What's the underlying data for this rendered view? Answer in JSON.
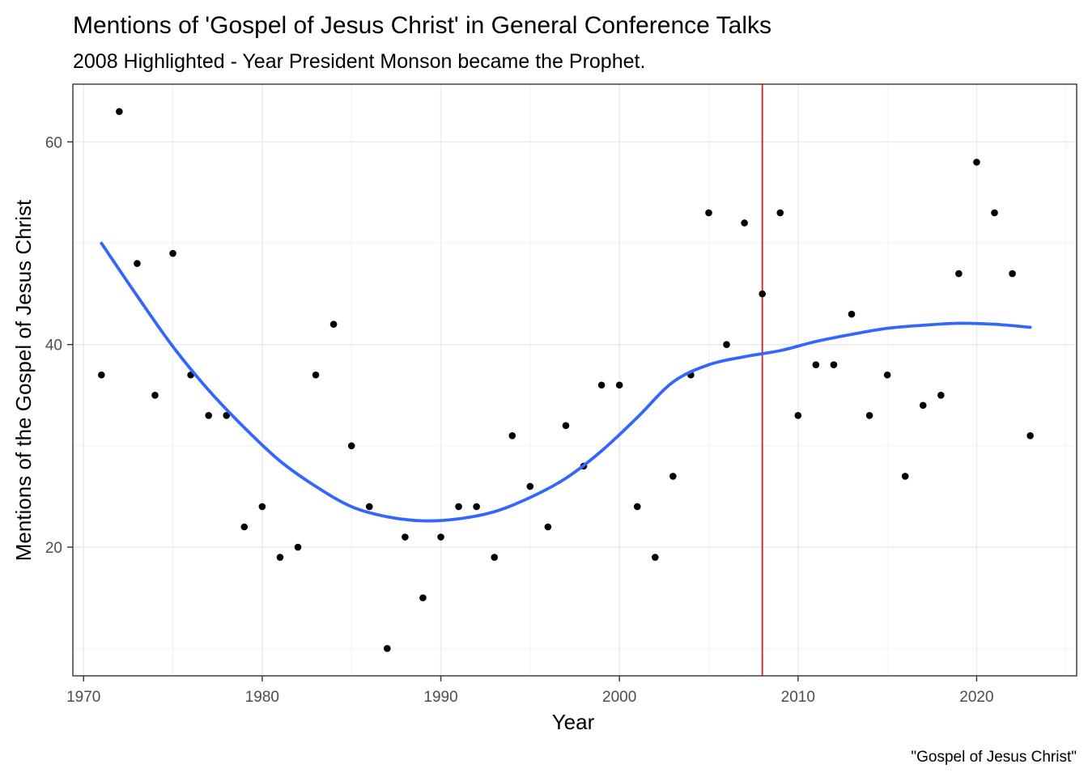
{
  "chart_data": {
    "type": "scatter",
    "title": "Mentions of 'Gospel of Jesus Christ' in General Conference Talks",
    "subtitle": "2008 Highlighted - Year President Monson became the Prophet.",
    "xlabel": "Year",
    "ylabel": "Mentions of the Gospel of Jesus Christ",
    "caption": "\"Gospel of Jesus Christ\"",
    "xlim": [
      1969.4,
      2025.6
    ],
    "ylim": [
      7.3,
      65.7
    ],
    "x_ticks": [
      1970,
      1980,
      1990,
      2000,
      2010,
      2020
    ],
    "y_ticks": [
      20,
      40,
      60
    ],
    "grid": true,
    "points": [
      {
        "x": 1971,
        "y": 37
      },
      {
        "x": 1972,
        "y": 63
      },
      {
        "x": 1973,
        "y": 48
      },
      {
        "x": 1974,
        "y": 35
      },
      {
        "x": 1975,
        "y": 49
      },
      {
        "x": 1976,
        "y": 37
      },
      {
        "x": 1977,
        "y": 33
      },
      {
        "x": 1978,
        "y": 33
      },
      {
        "x": 1979,
        "y": 22
      },
      {
        "x": 1980,
        "y": 24
      },
      {
        "x": 1981,
        "y": 19
      },
      {
        "x": 1982,
        "y": 20
      },
      {
        "x": 1983,
        "y": 37
      },
      {
        "x": 1984,
        "y": 42
      },
      {
        "x": 1985,
        "y": 30
      },
      {
        "x": 1986,
        "y": 24
      },
      {
        "x": 1987,
        "y": 10
      },
      {
        "x": 1988,
        "y": 21
      },
      {
        "x": 1989,
        "y": 15
      },
      {
        "x": 1990,
        "y": 21
      },
      {
        "x": 1991,
        "y": 24
      },
      {
        "x": 1992,
        "y": 24
      },
      {
        "x": 1993,
        "y": 19
      },
      {
        "x": 1994,
        "y": 31
      },
      {
        "x": 1995,
        "y": 26
      },
      {
        "x": 1996,
        "y": 22
      },
      {
        "x": 1997,
        "y": 32
      },
      {
        "x": 1998,
        "y": 28
      },
      {
        "x": 1999,
        "y": 36
      },
      {
        "x": 2000,
        "y": 36
      },
      {
        "x": 2001,
        "y": 24
      },
      {
        "x": 2002,
        "y": 19
      },
      {
        "x": 2003,
        "y": 27
      },
      {
        "x": 2004,
        "y": 37
      },
      {
        "x": 2005,
        "y": 53
      },
      {
        "x": 2006,
        "y": 40
      },
      {
        "x": 2007,
        "y": 52
      },
      {
        "x": 2008,
        "y": 45
      },
      {
        "x": 2009,
        "y": 53
      },
      {
        "x": 2010,
        "y": 33
      },
      {
        "x": 2011,
        "y": 38
      },
      {
        "x": 2012,
        "y": 38
      },
      {
        "x": 2013,
        "y": 43
      },
      {
        "x": 2014,
        "y": 33
      },
      {
        "x": 2015,
        "y": 37
      },
      {
        "x": 2016,
        "y": 27
      },
      {
        "x": 2017,
        "y": 34
      },
      {
        "x": 2018,
        "y": 35
      },
      {
        "x": 2019,
        "y": 47
      },
      {
        "x": 2020,
        "y": 58
      },
      {
        "x": 2021,
        "y": 53
      },
      {
        "x": 2022,
        "y": 47
      },
      {
        "x": 2023,
        "y": 31
      }
    ],
    "smooth_line": {
      "color": "#3366ff",
      "x": [
        1971,
        1973,
        1975,
        1977,
        1979,
        1981,
        1983,
        1985,
        1987,
        1989,
        1991,
        1993,
        1995,
        1997,
        1999,
        2001,
        2003,
        2005,
        2007,
        2009,
        2011,
        2013,
        2015,
        2017,
        2019,
        2021,
        2023
      ],
      "y": [
        50,
        44.8,
        39.8,
        35.5,
        31.8,
        28.5,
        26.0,
        24.0,
        23.0,
        22.6,
        22.8,
        23.5,
        24.9,
        26.8,
        29.5,
        32.8,
        36.3,
        38.0,
        38.8,
        39.4,
        40.3,
        41.0,
        41.6,
        41.9,
        42.1,
        42.0,
        41.7
      ]
    },
    "highlight_line": {
      "x": 2008,
      "color": "#e31a1c"
    },
    "point_color": "#000000"
  }
}
